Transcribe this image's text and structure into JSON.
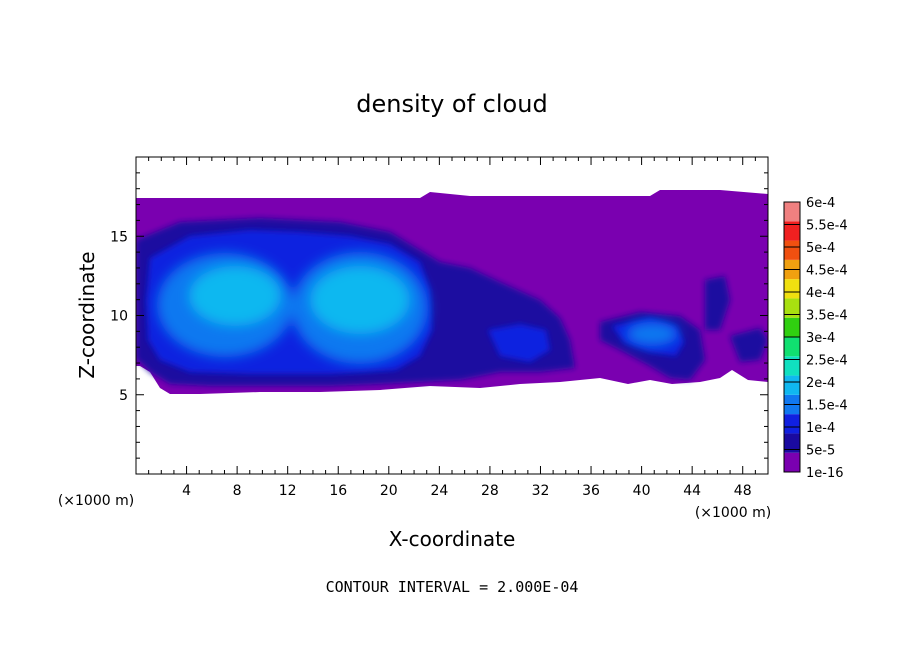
{
  "chart_data": {
    "type": "heatmap",
    "title": "density of cloud",
    "xlabel": "X-coordinate",
    "ylabel": "Z-coordinate",
    "x_unit_label": "(×1000 m)",
    "z_unit_label": "(×1000 m)",
    "xlim": [
      0,
      50
    ],
    "ylim": [
      0,
      20
    ],
    "x_ticks": [
      4,
      8,
      12,
      16,
      20,
      24,
      28,
      32,
      36,
      40,
      44,
      48
    ],
    "y_ticks": [
      5,
      10,
      15
    ],
    "colorbar": {
      "levels": [
        "1e-16",
        "5e-5",
        "1e-4",
        "1.5e-4",
        "2e-4",
        "2.5e-4",
        "3e-4",
        "3.5e-4",
        "4e-4",
        "4.5e-4",
        "5e-4",
        "5.5e-4",
        "6e-4"
      ],
      "colors": [
        "#7a00b0",
        "#1a0aa0",
        "#1020e0",
        "#1078f0",
        "#10b8f0",
        "#10e0c0",
        "#10e070",
        "#30d010",
        "#a8e010",
        "#f0e010",
        "#f0a010",
        "#f05010",
        "#f02020",
        "#f08080"
      ]
    },
    "footer": "CONTOUR INTERVAL = 2.000E-04",
    "cloud_layer": {
      "base_z": 5.3,
      "top_z": 17.4,
      "max_value_region": "1.5e-4 to 2e-4",
      "cores": [
        {
          "x_center": 8.5,
          "z_center": 11.0,
          "level": "2e-4"
        },
        {
          "x_center": 17.0,
          "z_center": 10.5,
          "level": "2e-4"
        },
        {
          "x_center": 40.0,
          "z_center": 9.0,
          "level": "1.5e-4"
        }
      ]
    }
  }
}
